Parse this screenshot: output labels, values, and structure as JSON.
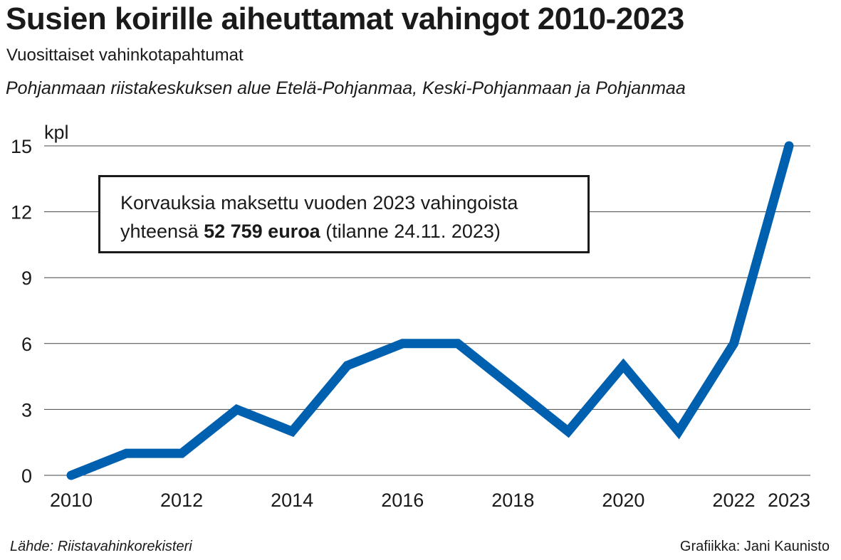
{
  "header": {
    "title": "Susien koirille aiheuttamat vahingot 2010-2023",
    "subtitle": "Vuosittaiset vahinkotapahtumat",
    "region": "Pohjanmaan riistakeskuksen alue Etelä-Pohjanmaa, Keski-Pohjanmaan ja Pohjanmaa"
  },
  "annotation": {
    "line1": "Korvauksia maksettu vuoden 2023 vahingoista",
    "line2_pre": "yhteensä ",
    "line2_bold": "52 759 euroa",
    "line2_post": " (tilanne 24.11. 2023)"
  },
  "footer": {
    "source": "Lähde: Riistavahinkorekisteri",
    "credit": "Grafiikka: Jani Kaunisto"
  },
  "colors": {
    "series": "#0060b0",
    "grid": "#444444",
    "text": "#1a1a1a"
  },
  "chart_data": {
    "type": "line",
    "title": "Susien koirille aiheuttamat vahingot 2010-2023",
    "subtitle": "Vuosittaiset vahinkotapahtumat",
    "xlabel": "",
    "ylabel": "kpl",
    "x": [
      2010,
      2011,
      2012,
      2013,
      2014,
      2015,
      2016,
      2017,
      2018,
      2019,
      2020,
      2021,
      2022,
      2023
    ],
    "series": [
      {
        "name": "Vahinkotapahtumat",
        "values": [
          0,
          1,
          1,
          3,
          2,
          5,
          6,
          6,
          4,
          2,
          5,
          2,
          6,
          15
        ]
      }
    ],
    "xticks": [
      "2010",
      "2012",
      "2014",
      "2016",
      "2018",
      "2020",
      "2022",
      "2023"
    ],
    "yticks": [
      "0",
      "3",
      "6",
      "9",
      "12",
      "15"
    ],
    "ylim": [
      0,
      15
    ],
    "xlim": [
      2010,
      2023
    ],
    "grid": true,
    "legend": "none"
  }
}
